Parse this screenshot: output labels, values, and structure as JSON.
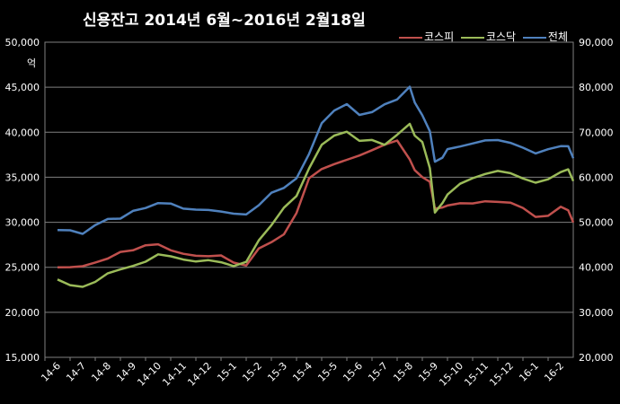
{
  "chart_data": {
    "type": "line",
    "title": "신용잔고 2014년 6월~2016년 2월18일",
    "y_unit": "억",
    "x_ticks": [
      "14-6",
      "14-7",
      "14-8",
      "14-9",
      "14-10",
      "14-11",
      "14-12",
      "15-1",
      "15-2",
      "15-3",
      "15-4",
      "15-5",
      "15-6",
      "15-7",
      "15-8",
      "15-9",
      "15-10",
      "15-11",
      "15-12",
      "16-1",
      "16-2"
    ],
    "y_left": {
      "ticks": [
        "15,000",
        "20,000",
        "25,000",
        "30,000",
        "35,000",
        "40,000",
        "45,000",
        "50,000"
      ],
      "min": 15000,
      "max": 50000
    },
    "y_right": {
      "ticks": [
        "20,000",
        "30,000",
        "40,000",
        "50,000",
        "60,000",
        "70,000",
        "80,000",
        "90,000"
      ],
      "min": 20000,
      "max": 90000
    },
    "grid": true,
    "legend_position": "top-right",
    "series": [
      {
        "name": "코스피",
        "axis": "left",
        "color": "#c0504d",
        "x": [
          0,
          0.5,
          1,
          1.5,
          2,
          2.5,
          3,
          3.5,
          4,
          4.5,
          5,
          5.5,
          6,
          6.5,
          7,
          7.5,
          8,
          8.5,
          9,
          9.5,
          10,
          10.5,
          11,
          11.5,
          12,
          12.5,
          13,
          13.5,
          14,
          14.2,
          14.5,
          14.8,
          15,
          15.3,
          15.5,
          16,
          16.5,
          17,
          17.5,
          18,
          18.5,
          19,
          19.5,
          20,
          20.3,
          20.5
        ],
        "y": [
          25000,
          25100,
          25000,
          25600,
          26000,
          26600,
          27000,
          27400,
          27500,
          27000,
          26400,
          26300,
          26300,
          26200,
          25600,
          25200,
          27000,
          27900,
          28600,
          31000,
          35000,
          35800,
          36500,
          37000,
          37300,
          38100,
          38600,
          39000,
          37100,
          35700,
          35000,
          34600,
          31400,
          31700,
          31900,
          32000,
          32200,
          32300,
          32200,
          32300,
          31500,
          30600,
          30800,
          31600,
          31400,
          30000
        ]
      },
      {
        "name": "코스닥",
        "axis": "right",
        "color": "#9bbb59",
        "x": [
          0,
          0.5,
          1,
          1.5,
          2,
          2.5,
          3,
          3.5,
          4,
          4.5,
          5,
          5.5,
          6,
          6.5,
          7,
          7.5,
          8,
          8.5,
          9,
          9.5,
          10,
          10.5,
          11,
          11.5,
          12,
          12.5,
          13,
          13.5,
          14,
          14.2,
          14.5,
          14.8,
          15,
          15.3,
          15.5,
          16,
          16.5,
          17,
          17.5,
          18,
          18.5,
          19,
          19.5,
          20,
          20.3,
          20.5
        ],
        "y": [
          37500,
          36000,
          35500,
          37000,
          38500,
          39500,
          40500,
          41000,
          43000,
          42500,
          41500,
          41500,
          41500,
          41000,
          40500,
          41000,
          46000,
          49500,
          53000,
          56000,
          62000,
          67000,
          69500,
          70000,
          68000,
          68500,
          67000,
          69500,
          72000,
          69000,
          68000,
          62000,
          52000,
          54500,
          56000,
          58500,
          60000,
          60500,
          61500,
          61000,
          59500,
          59000,
          59500,
          61000,
          62000,
          59000
        ]
      },
      {
        "name": "전체",
        "axis": "right",
        "color": "#4f81bd",
        "x": [
          0,
          0.5,
          1,
          1.5,
          2,
          2.5,
          3,
          3.5,
          4,
          4.5,
          5,
          5.5,
          6,
          6.5,
          7,
          7.5,
          8,
          8.5,
          9,
          9.5,
          10,
          10.5,
          11,
          11.5,
          12,
          12.5,
          13,
          13.5,
          14,
          14.2,
          14.5,
          14.8,
          15,
          15.3,
          15.5,
          16,
          16.5,
          17,
          17.5,
          18,
          18.5,
          19,
          19.5,
          20,
          20.3,
          20.5
        ],
        "y": [
          48500,
          48000,
          47500,
          49500,
          50500,
          51000,
          52500,
          53000,
          54500,
          54000,
          53000,
          53000,
          52500,
          52500,
          52000,
          51500,
          54000,
          56500,
          57500,
          60000,
          65000,
          72000,
          75000,
          76000,
          74000,
          74500,
          76000,
          77500,
          80000,
          76500,
          74000,
          70000,
          63500,
          64500,
          66000,
          67000,
          67500,
          68000,
          68500,
          67500,
          66500,
          65500,
          66000,
          67000,
          67000,
          64000
        ]
      }
    ]
  }
}
